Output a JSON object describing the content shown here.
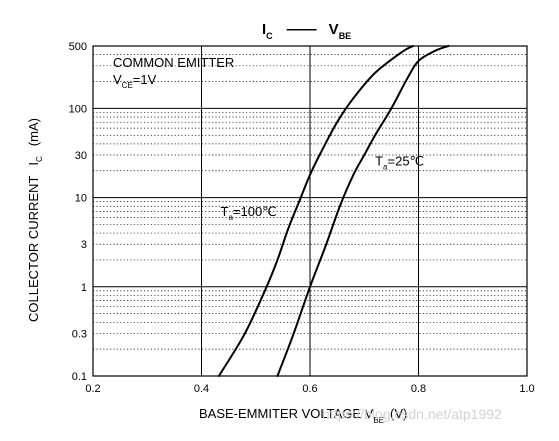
{
  "chart_data": {
    "type": "line",
    "title": {
      "main": "I",
      "main_sub": "C",
      "sep": "——",
      "second": "V",
      "second_sub": "BE"
    },
    "xlabel": {
      "text": "BASE-EMMITER VOLTAGE  V",
      "sub": "BE",
      "unit": "(V)"
    },
    "ylabel": {
      "text": "COLLECTOR CURRENT",
      "symbol": "I",
      "sub": "C",
      "unit": "(mA)"
    },
    "xlim": [
      0.2,
      1.0
    ],
    "ylim": [
      0.1,
      500
    ],
    "yscale": "log",
    "x_ticks": [
      {
        "value": 0.2,
        "label": "0.2"
      },
      {
        "value": 0.4,
        "label": "0.4"
      },
      {
        "value": 0.6,
        "label": "0.6"
      },
      {
        "value": 0.8,
        "label": "0.8"
      },
      {
        "value": 1.0,
        "label": "1.0"
      }
    ],
    "y_ticks": [
      {
        "value": 0.1,
        "label": "0.1"
      },
      {
        "value": 0.3,
        "label": "0.3"
      },
      {
        "value": 1,
        "label": "1"
      },
      {
        "value": 3,
        "label": "3"
      },
      {
        "value": 10,
        "label": "10"
      },
      {
        "value": 30,
        "label": "30"
      },
      {
        "value": 100,
        "label": "100"
      },
      {
        "value": 500,
        "label": "500"
      }
    ],
    "major_y_grid": [
      1,
      10,
      100
    ],
    "minor_y_grid": [
      0.2,
      0.3,
      0.4,
      0.5,
      0.6,
      0.7,
      0.8,
      0.9,
      2,
      3,
      4,
      5,
      6,
      7,
      8,
      9,
      20,
      30,
      40,
      50,
      60,
      70,
      80,
      90,
      200,
      300,
      400
    ],
    "major_x_grid": [
      0.4,
      0.6,
      0.8
    ],
    "grid": true,
    "series": [
      {
        "name": "Ta=100℃",
        "x": [
          0.432,
          0.48,
          0.52,
          0.54,
          0.56,
          0.58,
          0.6,
          0.62,
          0.65,
          0.68,
          0.72,
          0.77,
          0.79
        ],
        "y": [
          0.1,
          0.3,
          1,
          2,
          4.5,
          9,
          18,
          32,
          70,
          130,
          250,
          430,
          500
        ]
      },
      {
        "name": "Ta=25℃",
        "x": [
          0.54,
          0.57,
          0.6,
          0.63,
          0.655,
          0.68,
          0.7,
          0.72,
          0.75,
          0.78,
          0.8,
          0.83,
          0.855
        ],
        "y": [
          0.1,
          0.3,
          1,
          3,
          8,
          18,
          30,
          50,
          100,
          220,
          340,
          440,
          500
        ]
      }
    ],
    "annotations": {
      "mode": {
        "line1": "COMMON EMITTER",
        "line2_pre": "V",
        "line2_sub": "CE",
        "line2_post": "=1V"
      },
      "curve_labels": [
        {
          "series": 0,
          "pre": "T",
          "sub": "a",
          "post": "=100℃",
          "anchor_x": 0.435,
          "anchor_y": 6.2
        },
        {
          "series": 1,
          "pre": "T",
          "sub": "a",
          "post": "=25℃",
          "anchor_x": 0.72,
          "anchor_y": 23
        }
      ]
    }
  },
  "watermark": "https://blog.csdn.net/atp1992"
}
